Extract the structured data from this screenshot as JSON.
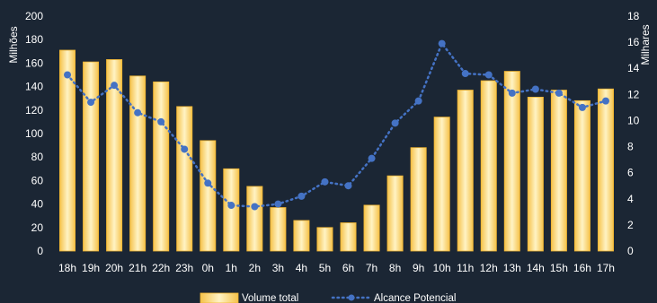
{
  "chart_data": {
    "type": "bar",
    "categories": [
      "18h",
      "19h",
      "20h",
      "21h",
      "22h",
      "23h",
      "0h",
      "1h",
      "2h",
      "3h",
      "4h",
      "5h",
      "6h",
      "7h",
      "8h",
      "9h",
      "10h",
      "11h",
      "12h",
      "13h",
      "14h",
      "15h",
      "16h",
      "17h"
    ],
    "series": [
      {
        "name": "Volume total",
        "type": "bar",
        "axis": "left",
        "values": [
          171,
          161,
          163,
          149,
          144,
          123,
          94,
          70,
          55,
          37,
          26,
          20,
          24,
          39,
          64,
          88,
          114,
          137,
          145,
          153,
          131,
          137,
          128,
          138
        ]
      },
      {
        "name": "Alcance Potencial",
        "type": "line",
        "axis": "right",
        "values": [
          13.5,
          11.4,
          12.7,
          10.6,
          9.9,
          7.8,
          5.2,
          3.5,
          3.4,
          3.6,
          4.2,
          5.3,
          5.0,
          7.1,
          9.8,
          11.5,
          15.9,
          13.6,
          13.5,
          12.1,
          12.4,
          12.1,
          11.0,
          11.5
        ]
      }
    ],
    "ylabel": "Milhões",
    "y2label": "Milhares",
    "ylim": [
      0,
      200
    ],
    "y2lim": [
      0,
      18
    ],
    "yticks": [
      0,
      20,
      40,
      60,
      80,
      100,
      120,
      140,
      160,
      180,
      200
    ],
    "y2ticks": [
      0,
      2,
      4,
      6,
      8,
      10,
      12,
      14,
      16,
      18
    ],
    "grid": false,
    "legend_position": "bottom",
    "colors": {
      "background": "#1b2634",
      "bar_light": "#fff3c4",
      "bar_dark": "#f5c24a",
      "bar_stroke": "#f2b632",
      "line": "#4472c4",
      "text": "#ffffff"
    }
  }
}
